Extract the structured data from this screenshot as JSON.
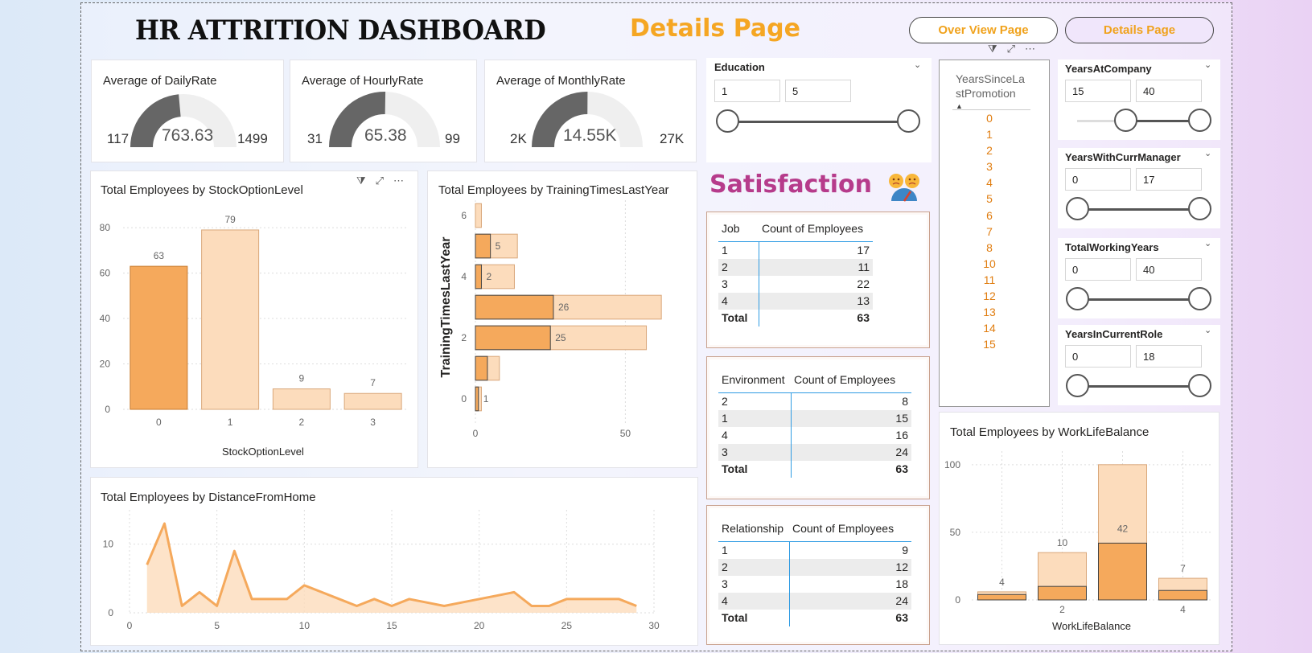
{
  "header": {
    "title": "HR ATTRITION DASHBOARD",
    "subtitle": "Details Page",
    "nav": [
      {
        "label": "Over View Page",
        "active": false
      },
      {
        "label": "Details Page",
        "active": true
      }
    ]
  },
  "gauges": [
    {
      "title": "Average of DailyRate",
      "min": "117",
      "max": "1499",
      "value": "763.63",
      "fill": 0.4717
    },
    {
      "title": "Average of HourlyRate",
      "min": "31",
      "max": "99",
      "value": "65.38",
      "fill": 0.5051
    },
    {
      "title": "Average of MonthlyRate",
      "min": "2K",
      "max": "27K",
      "value": "14.55K",
      "fill": 0.502
    }
  ],
  "slicers": {
    "education": {
      "title": "Education",
      "from": "1",
      "to": "5"
    },
    "years_at_company": {
      "title": "YearsAtCompany",
      "from": "15",
      "to": "40"
    },
    "years_with_curr_manager": {
      "title": "YearsWithCurrManager",
      "from": "0",
      "to": "17"
    },
    "total_working_years": {
      "title": "TotalWorkingYears",
      "from": "0",
      "to": "40"
    },
    "years_in_current_role": {
      "title": "YearsInCurrentRole",
      "from": "0",
      "to": "18"
    }
  },
  "promotion_list": {
    "header": "YearsSinceLastPromotion",
    "header_line1": "YearsSinceLa",
    "header_line2": "stPromotion",
    "items": [
      "0",
      "1",
      "2",
      "3",
      "4",
      "5",
      "6",
      "7",
      "8",
      "10",
      "11",
      "12",
      "13",
      "14",
      "15"
    ]
  },
  "satisfaction": {
    "heading": "Satisfaction",
    "job": {
      "col1": "Job",
      "col2": "Count of Employees",
      "rows": [
        [
          "1",
          "17"
        ],
        [
          "2",
          "11"
        ],
        [
          "3",
          "22"
        ],
        [
          "4",
          "13"
        ]
      ],
      "total_label": "Total",
      "total": "63"
    },
    "environment": {
      "col1": "Environment",
      "col2": "Count of Employees",
      "rows": [
        [
          "2",
          "8"
        ],
        [
          "1",
          "15"
        ],
        [
          "4",
          "16"
        ],
        [
          "3",
          "24"
        ]
      ],
      "total_label": "Total",
      "total": "63"
    },
    "relationship": {
      "col1": "Relationship",
      "col2": "Count of Employees",
      "rows": [
        [
          "1",
          "9"
        ],
        [
          "2",
          "12"
        ],
        [
          "3",
          "18"
        ],
        [
          "4",
          "24"
        ]
      ],
      "total_label": "Total",
      "total": "63"
    }
  },
  "colors": {
    "primary": "#f5a95c",
    "light": "#fcdcbc",
    "gauge_dark": "#666666",
    "gauge_light": "#efefef",
    "slicer_orange": "#e07d10"
  },
  "chart_data": [
    {
      "id": "stock",
      "type": "bar",
      "title": "Total Employees by StockOptionLevel",
      "xlabel": "StockOptionLevel",
      "ylabel": "",
      "categories": [
        "0",
        "1",
        "2",
        "3"
      ],
      "values": [
        63,
        79,
        9,
        7
      ],
      "highlight": [
        true,
        false,
        false,
        false
      ],
      "ylim": [
        0,
        85
      ],
      "yticks": [
        0,
        20,
        40,
        60,
        80
      ]
    },
    {
      "id": "training",
      "type": "bar",
      "orientation": "horizontal",
      "title": "Total Employees by TrainingTimesLastYear",
      "ylabel": "TrainingTimesLastYear",
      "xlabel": "",
      "categories": [
        "0",
        "1",
        "2",
        "3",
        "4",
        "5",
        "6"
      ],
      "values_highlight": [
        1,
        4,
        25,
        26,
        2,
        5,
        0
      ],
      "values_total": [
        2,
        8,
        57,
        62,
        13,
        14,
        2
      ],
      "labels": [
        "1",
        "",
        "25",
        "26",
        "2",
        "5",
        ""
      ],
      "ytick_labels": [
        "0",
        "2",
        "4",
        "6"
      ],
      "xticks": [
        0,
        50
      ],
      "xlim": [
        0,
        70
      ]
    },
    {
      "id": "distance",
      "type": "area",
      "title": "Total Employees by DistanceFromHome",
      "xlabel": "",
      "ylabel": "",
      "x": [
        1,
        2,
        3,
        4,
        5,
        6,
        7,
        8,
        9,
        10,
        11,
        12,
        13,
        14,
        15,
        16,
        17,
        18,
        19,
        20,
        21,
        22,
        23,
        24,
        25,
        26,
        27,
        28,
        29
      ],
      "y": [
        7,
        13,
        1,
        3,
        1,
        9,
        2,
        2,
        2,
        4,
        3,
        2,
        1,
        2,
        1,
        2,
        1.5,
        1,
        1.5,
        2,
        2.5,
        3,
        1,
        1,
        2,
        2,
        2,
        2,
        1
      ],
      "xlim": [
        0,
        30
      ],
      "ylim": [
        0,
        15
      ],
      "xticks": [
        0,
        5,
        10,
        15,
        20,
        25,
        30
      ],
      "yticks": [
        0,
        10
      ]
    },
    {
      "id": "worklife",
      "type": "bar",
      "title": "Total Employees by WorkLifeBalance",
      "xlabel": "WorkLifeBalance",
      "ylabel": "",
      "categories": [
        "1",
        "2",
        "3",
        "4"
      ],
      "values_highlight": [
        4,
        10,
        42,
        7
      ],
      "values_total": [
        6,
        35,
        100,
        16
      ],
      "ylim": [
        0,
        110
      ],
      "yticks": [
        0,
        50,
        100
      ],
      "xtick_labels": [
        "",
        "2",
        "",
        "4"
      ]
    }
  ]
}
